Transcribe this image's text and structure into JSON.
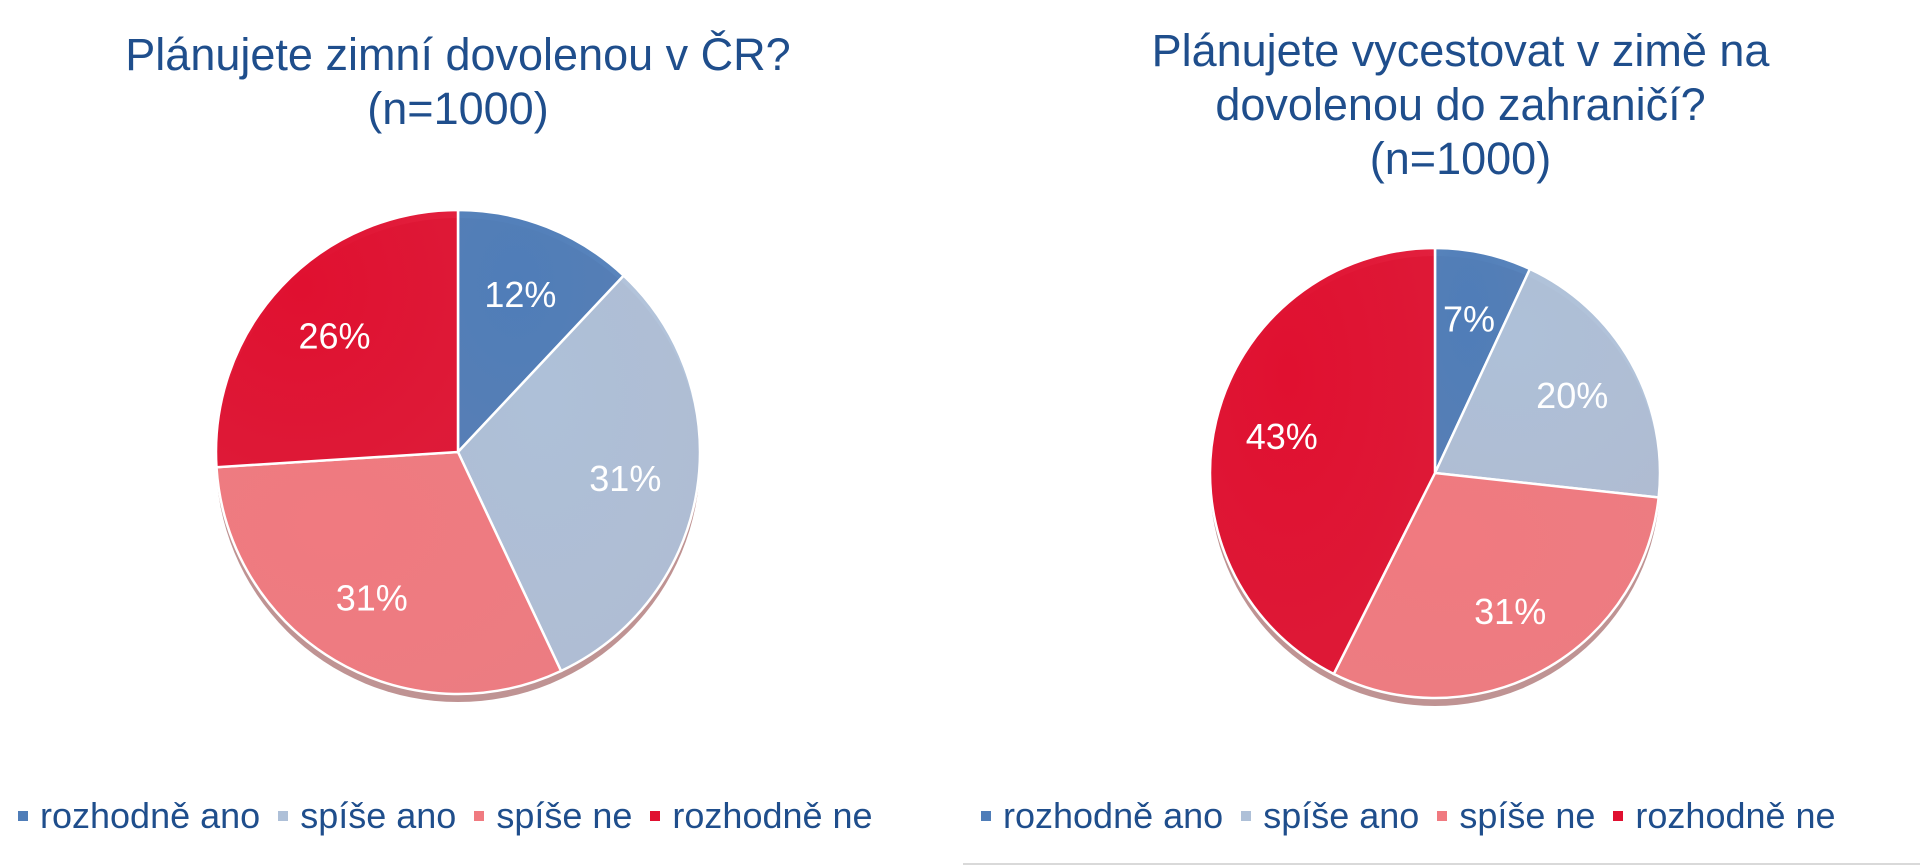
{
  "colors": {
    "title": "#1f4e8c",
    "rozhodne_ano": "#4f7db8",
    "spise_ano": "#aec0d8",
    "spise_ne": "#f07a80",
    "rozhodne_ne": "#e01030",
    "label": "#ffffff"
  },
  "chart_data": [
    {
      "type": "pie",
      "title": [
        "Plánujete zimní dovolenou v ČR?",
        "(n=1000)"
      ],
      "categories": [
        "rozhodně ano",
        "spíše ano",
        "spíše ne",
        "rozhodně ne"
      ],
      "values": [
        12,
        31,
        31,
        26
      ],
      "labels": [
        "12%",
        "31%",
        "31%",
        "26%"
      ],
      "legend_position": "bottom"
    },
    {
      "type": "pie",
      "title": [
        "Plánujete vycestovat v zimě na",
        "dovolenou do zahraničí?",
        "(n=1000)"
      ],
      "categories": [
        "rozhodně ano",
        "spíše ano",
        "spíše ne",
        "rozhodně ne"
      ],
      "values": [
        7,
        20,
        31,
        43
      ],
      "labels": [
        "7%",
        "20%",
        "31%",
        "43%"
      ],
      "legend_position": "bottom"
    }
  ]
}
